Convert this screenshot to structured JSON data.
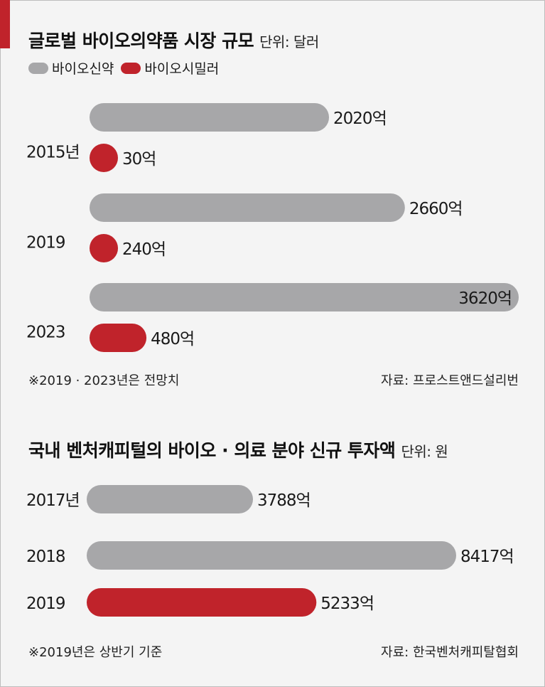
{
  "colors": {
    "gray": "#a7a7a9",
    "red": "#c0232b",
    "accent": "#c0232b"
  },
  "chart1": {
    "title": "글로벌 바이오의약품 시장 규모",
    "unit": "단위: 달러",
    "legend": [
      {
        "name": "바이오신약",
        "color": "#a7a7a9",
        "icon": "pill-swatch"
      },
      {
        "name": "바이오시밀러",
        "color": "#c0232b",
        "icon": "pill-swatch"
      }
    ],
    "note": "※2019 · 2023년은 전망치",
    "source": "자료: 프로스트앤드설리번"
  },
  "chart2": {
    "title": "국내 벤처캐피털의 바이오 · 의료 분야 신규 투자액",
    "unit": "단위: 원",
    "note": "※2019년은 상반기 기준",
    "source": "자료: 한국벤처캐피탈협회"
  },
  "chart_data": [
    {
      "type": "bar",
      "orientation": "horizontal",
      "title": "글로벌 바이오의약품 시장 규모",
      "unit": "단위: 달러",
      "categories": [
        "2015년",
        "2019",
        "2023"
      ],
      "series": [
        {
          "name": "바이오신약",
          "color": "#a7a7a9",
          "values": [
            2020,
            2660,
            3620
          ],
          "labels": [
            "2020억",
            "2660억",
            "3620억"
          ]
        },
        {
          "name": "바이오시밀러",
          "color": "#c0232b",
          "values": [
            30,
            240,
            480
          ],
          "labels": [
            "30억",
            "240억",
            "480억"
          ]
        }
      ],
      "legend": "top-left",
      "grid": false
    },
    {
      "type": "bar",
      "orientation": "horizontal",
      "title": "국내 벤처캐피털의 바이오 · 의료 분야 신규 투자액",
      "unit": "단위: 원",
      "categories": [
        "2017년",
        "2018",
        "2019"
      ],
      "values": [
        3788,
        8417,
        5233
      ],
      "labels": [
        "3788억",
        "8417억",
        "5233억"
      ],
      "colors": [
        "#a7a7a9",
        "#a7a7a9",
        "#c0232b"
      ],
      "grid": false
    }
  ]
}
